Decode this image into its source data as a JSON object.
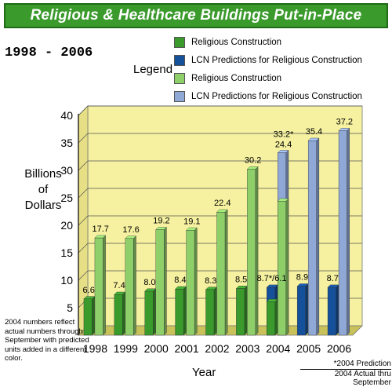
{
  "header": {
    "title": "Religious & Healthcare Buildings Put-in-Place"
  },
  "period": "1998  -  2006",
  "legend": {
    "title": "Legend",
    "items": [
      {
        "label": "Religious Construction",
        "color": "#3a9a2c"
      },
      {
        "label": "LCN Predictions for Religious Construction",
        "color": "#15509a"
      },
      {
        "label": "Religious Construction",
        "color": "#8fcf6a"
      },
      {
        "label": "LCN Predictions for Religious Construction",
        "color": "#8fa8d6"
      }
    ]
  },
  "axis": {
    "ylabel_lines": [
      "Billions",
      "of",
      "Dollars"
    ],
    "xlabel": "Year"
  },
  "note": "2004 numbers reflect actual numbers through September with predicted units added in a different color.",
  "prediction_note": {
    "line1": "*2004 Prediction",
    "line2": "2004 Actual thru September"
  },
  "colors": {
    "plot_bg": "#f5f1a0",
    "floor": "#c9c25a",
    "dark_green": "#3a9a2c",
    "light_green": "#8fcf6a",
    "dark_blue": "#15509a",
    "light_blue": "#8fa8d6"
  },
  "chart_data": {
    "type": "bar",
    "categories": [
      "1998",
      "1999",
      "2000",
      "2001",
      "2002",
      "2003",
      "2004",
      "2005",
      "2006"
    ],
    "ylim": [
      0,
      40
    ],
    "yticks": [
      5,
      10,
      15,
      20,
      25,
      30,
      35,
      40
    ],
    "grid": true,
    "series": [
      {
        "name": "Religious Construction",
        "color": "#3a9a2c",
        "values": [
          6.6,
          7.4,
          8.0,
          8.4,
          8.3,
          8.5,
          6.1,
          null,
          null
        ]
      },
      {
        "name": "LCN Predictions for Religious Construction",
        "color": "#15509a",
        "values": [
          null,
          null,
          null,
          null,
          null,
          null,
          8.7,
          8.9,
          8.7
        ]
      },
      {
        "name": "Religious Construction",
        "color": "#8fcf6a",
        "values": [
          17.7,
          17.6,
          19.2,
          19.1,
          22.4,
          30.2,
          24.4,
          null,
          null
        ]
      },
      {
        "name": "LCN Predictions for Religious Construction",
        "color": "#8fa8d6",
        "values": [
          null,
          null,
          null,
          null,
          null,
          null,
          33.2,
          35.4,
          37.2
        ]
      }
    ],
    "data_labels": {
      "series1": [
        "6.6",
        "7.4",
        "8.0",
        "8.4",
        "8.3",
        "8.5",
        "8.7*/6.1",
        "8.9",
        "8.7"
      ],
      "series2": [
        "17.7",
        "17.6",
        "19.2",
        "19.1",
        "22.4",
        "30.2",
        "24.4",
        "35.4",
        "37.2"
      ],
      "extra_2004": "33.2*"
    }
  }
}
